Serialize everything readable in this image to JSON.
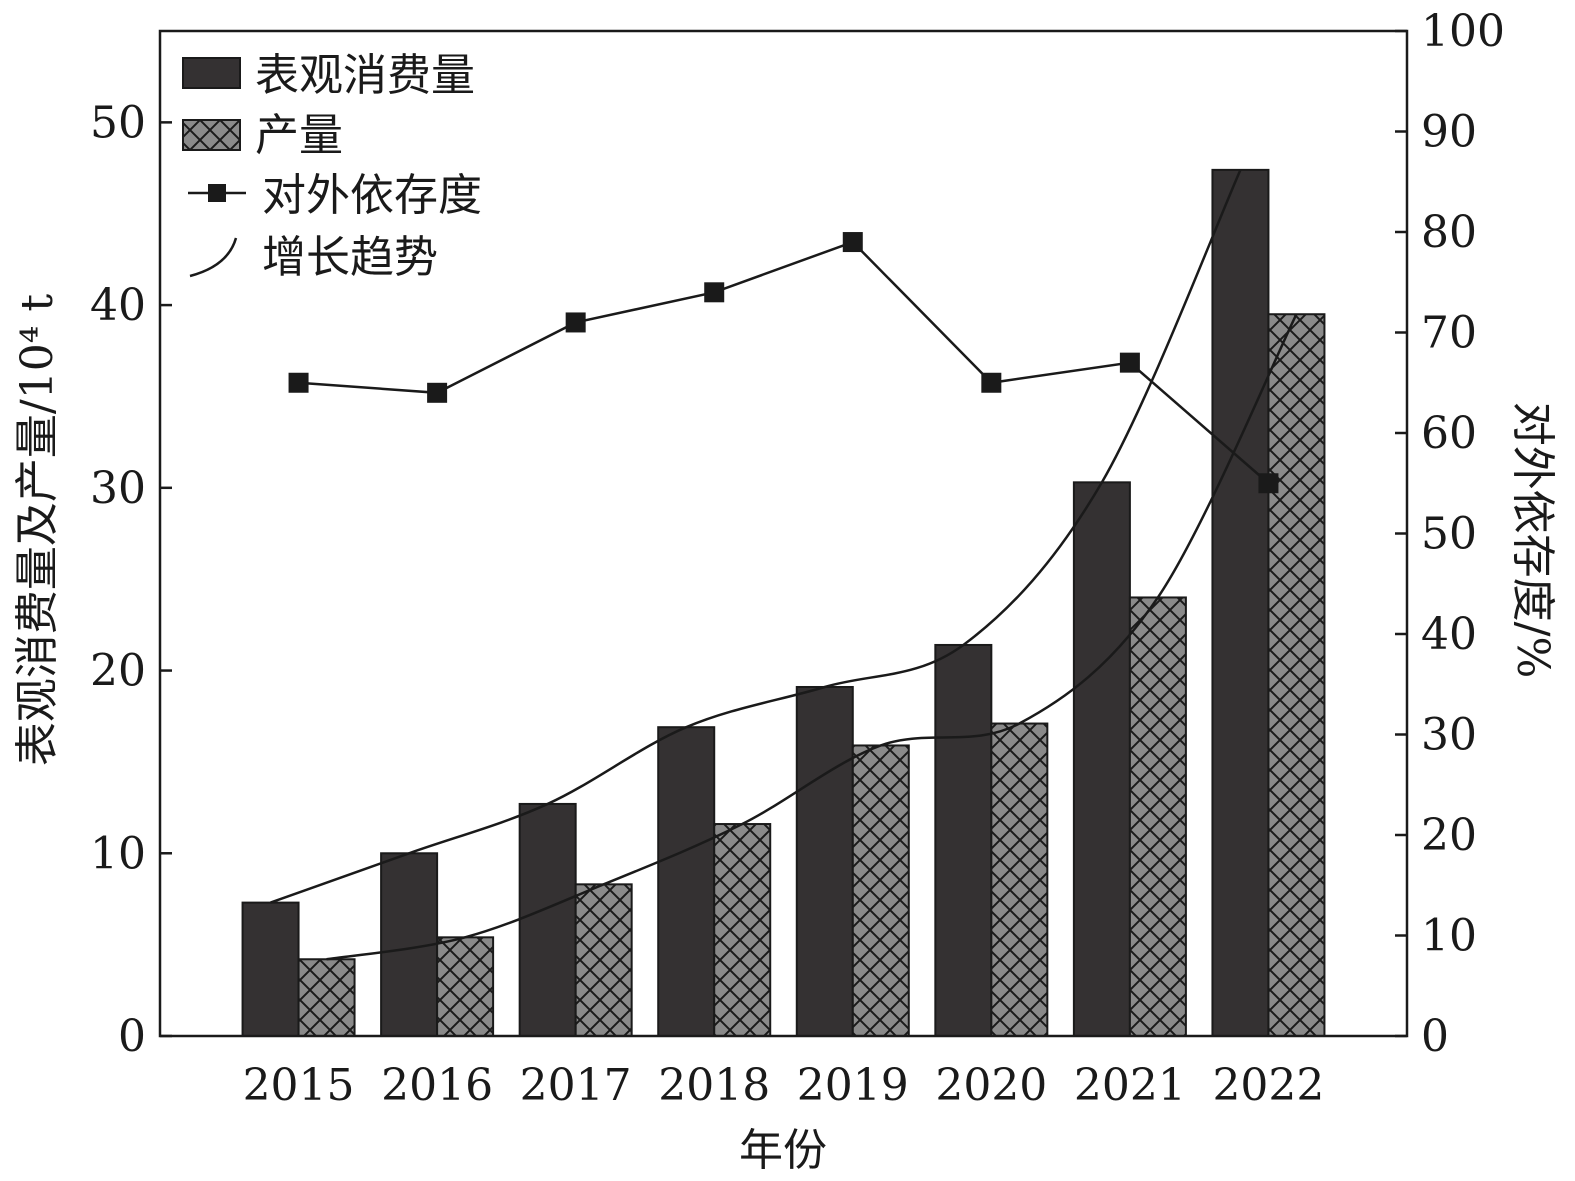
{
  "chart_data": {
    "type": "bar",
    "categories": [
      "2015",
      "2016",
      "2017",
      "2018",
      "2019",
      "2020",
      "2021",
      "2022"
    ],
    "series": [
      {
        "name": "表观消费量",
        "type": "bar",
        "axis": "left",
        "color": "#343132",
        "values": [
          7.3,
          10.0,
          12.7,
          16.9,
          19.1,
          21.4,
          30.3,
          47.4
        ]
      },
      {
        "name": "产量",
        "type": "bar",
        "axis": "left",
        "color": "#8a8a8a",
        "pattern": "crosshatch",
        "values": [
          4.2,
          5.4,
          8.3,
          11.6,
          15.9,
          17.1,
          24.0,
          39.5
        ]
      },
      {
        "name": "对外依存度",
        "type": "line",
        "axis": "right",
        "marker": "square",
        "values": [
          65,
          64,
          71,
          74,
          79,
          65,
          67,
          55
        ]
      }
    ],
    "trend_legend": "增长趋势",
    "xlabel": "年份",
    "ylabel_left": "表观消费量及产量/10⁴ t",
    "ylabel_right": "对外依存度/%",
    "ylim_left": [
      0,
      55
    ],
    "yticks_left": [
      "0",
      "10",
      "20",
      "30",
      "40",
      "50"
    ],
    "ylim_right": [
      0,
      100
    ],
    "yticks_right": [
      "0",
      "10",
      "20",
      "30",
      "40",
      "50",
      "60",
      "70",
      "80",
      "90",
      "100"
    ],
    "legend_position": "top-left",
    "grid": false
  }
}
